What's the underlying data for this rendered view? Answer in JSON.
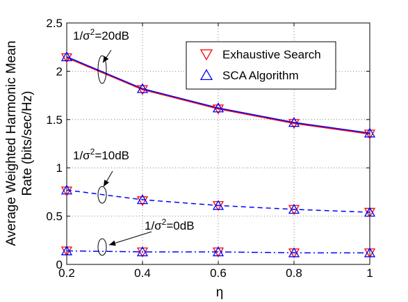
{
  "chart_data": {
    "type": "line",
    "xlabel": "η",
    "ylabel_lines": [
      "Average Weighted Harmonic Mean",
      "Rate (bits/sec/Hz)"
    ],
    "xlim": [
      0.2,
      1.0
    ],
    "ylim": [
      0,
      2.5
    ],
    "x_ticks": [
      "0.2",
      "0.4",
      "0.6",
      "0.8",
      "1"
    ],
    "y_ticks": [
      "0",
      "0.5",
      "1",
      "1.5",
      "2",
      "2.5"
    ],
    "grid": true,
    "legend_position": "top-right",
    "legend": [
      {
        "label": "Exhaustive Search",
        "marker": "triangle-down",
        "color": "#ff0000"
      },
      {
        "label": "SCA Algorithm",
        "marker": "triangle-up",
        "color": "#0000ff"
      }
    ],
    "x": [
      0.2,
      0.4,
      0.6,
      0.8,
      1.0
    ],
    "groups": [
      {
        "snr_base": "1/σ",
        "snr_value": "=20dB",
        "line_style": "solid",
        "exhaustive": [
          2.14,
          1.81,
          1.61,
          1.46,
          1.35
        ],
        "sca": [
          2.15,
          1.82,
          1.62,
          1.47,
          1.36
        ]
      },
      {
        "snr_base": "1/σ",
        "snr_value": "=10dB",
        "line_style": "dashed",
        "exhaustive": [
          0.76,
          0.66,
          0.61,
          0.57,
          0.54
        ],
        "sca": [
          0.77,
          0.67,
          0.61,
          0.57,
          0.54
        ]
      },
      {
        "snr_base": "1/σ",
        "snr_value": "=0dB",
        "line_style": "dashdot",
        "exhaustive": [
          0.14,
          0.13,
          0.13,
          0.12,
          0.12
        ],
        "sca": [
          0.14,
          0.13,
          0.13,
          0.12,
          0.12
        ]
      }
    ],
    "colors": {
      "exhaustive": "#ff0000",
      "sca": "#0000ff",
      "line_main": "#0000ff"
    }
  }
}
